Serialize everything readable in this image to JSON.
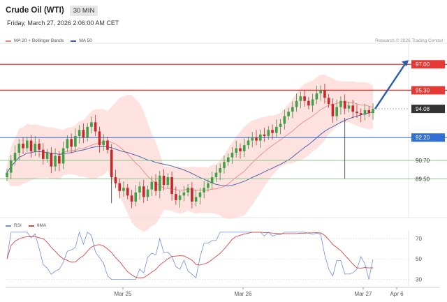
{
  "header": {
    "title": "Crude Oil (WTI)",
    "timeframe": "30 MIN",
    "date": "Friday, March 27, 2026 2:06:00 AM CET"
  },
  "legend": {
    "bollinger_label": "MA 20 + Bollinger Bands",
    "ma50_label": "MA 50",
    "bollinger_color": "#f08080",
    "ma50_color": "#3a5ba8"
  },
  "credit": "Research © 2026 Trading Central",
  "rsi_legend": {
    "rsi_label": "RSI",
    "ma_label": "9MA",
    "rsi_color": "#6f8fd8",
    "ma_color": "#d94545"
  },
  "chart_data": [
    {
      "type": "candlestick",
      "title": "Crude Oil (WTI)",
      "timeframe": "30 MIN",
      "ylim": [
        87.5,
        98.2
      ],
      "x_ticks": [
        "Mar 25",
        "Mar 26",
        "Mar 27",
        "Apr 6"
      ],
      "price_levels": [
        {
          "value": 97.0,
          "label": "97.00",
          "color": "#e53935",
          "style": "resistance"
        },
        {
          "value": 95.3,
          "label": "95.30",
          "color": "#e53935",
          "style": "resistance"
        },
        {
          "value": 94.08,
          "label": "94.08",
          "color": "#333333",
          "style": "last"
        },
        {
          "value": 92.2,
          "label": "92.20",
          "color": "#2f6fd6",
          "style": "pivot"
        },
        {
          "value": 90.7,
          "label": "90.70",
          "color": "#66bb6a",
          "style": "support"
        },
        {
          "value": 89.5,
          "label": "89.50",
          "color": "#66bb6a",
          "style": "support"
        }
      ],
      "last_price": 94.08,
      "forecast_arrow": {
        "from": 94.08,
        "to": 97.0,
        "color": "#2a5caa"
      },
      "indicators": [
        "MA 20 + Bollinger Bands",
        "MA 50"
      ],
      "closes": [
        89.9,
        90.7,
        91.2,
        91.8,
        91.5,
        92.0,
        91.3,
        91.8,
        91.4,
        90.8,
        91.2,
        90.3,
        91.0,
        90.5,
        91.5,
        92.1,
        91.6,
        92.3,
        92.7,
        92.2,
        92.9,
        93.2,
        92.6,
        91.7,
        92.0,
        91.4,
        89.6,
        89.2,
        88.7,
        88.9,
        88.4,
        88.0,
        88.6,
        89.0,
        88.3,
        88.8,
        89.3,
        88.7,
        89.7,
        89.1,
        89.6,
        88.5,
        88.1,
        88.4,
        88.6,
        88.9,
        88.0,
        88.3,
        88.6,
        88.9,
        89.2,
        89.6,
        89.9,
        90.2,
        90.6,
        90.9,
        91.2,
        91.5,
        91.3,
        91.7,
        92.0,
        92.2,
        92.0,
        92.4,
        92.3,
        92.7,
        92.5,
        92.9,
        93.1,
        93.6,
        93.9,
        94.2,
        94.6,
        94.9,
        94.6,
        94.3,
        94.7,
        95.1,
        95.3,
        94.8,
        94.4,
        93.6,
        94.2,
        94.6,
        94.1,
        94.3,
        93.9,
        93.8,
        93.7,
        94.0,
        93.8,
        94.08
      ],
      "rsi": {
        "name": "RSI",
        "ma_name": "9MA",
        "ticks": [
          70,
          50,
          30
        ],
        "ylim": [
          25,
          78
        ]
      }
    }
  ]
}
